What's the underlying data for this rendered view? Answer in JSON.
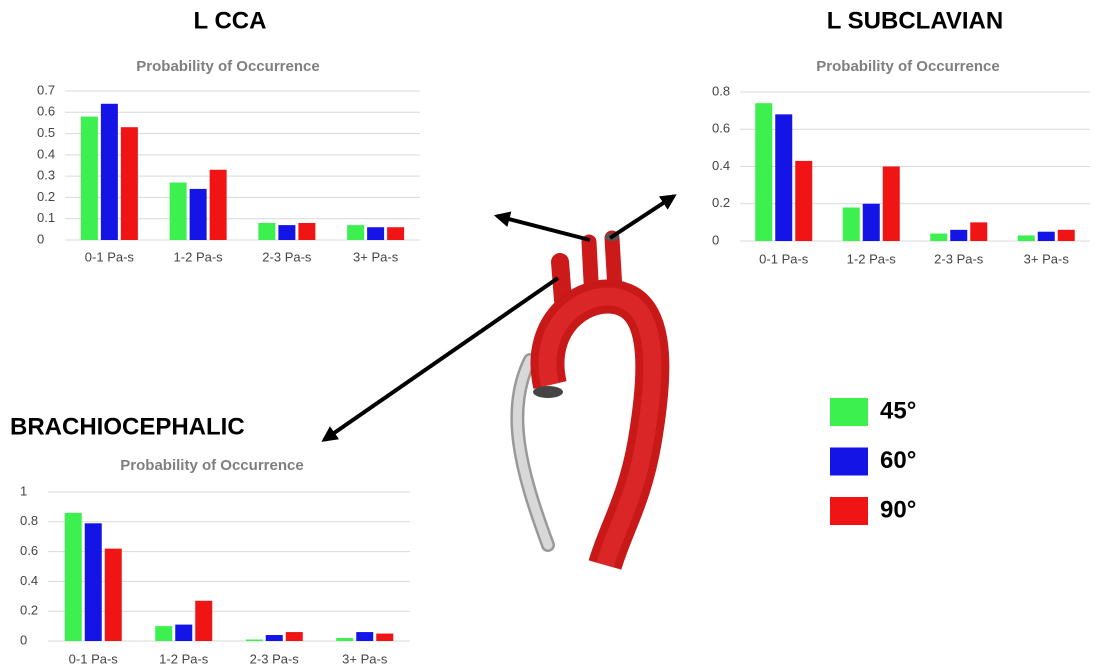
{
  "legend": [
    {
      "name": "45°",
      "color": "#3cf050"
    },
    {
      "name": "60°",
      "color": "#1414e6"
    },
    {
      "name": "90°",
      "color": "#f01414"
    }
  ],
  "chart_data": [
    {
      "type": "bar",
      "title": "L CCA",
      "subtitle": "Probability of Occurrence",
      "categories": [
        "0-1 Pa-s",
        "1-2 Pa-s",
        "2-3 Pa-s",
        "3+ Pa-s"
      ],
      "series": [
        {
          "values": [
            0.58,
            0.27,
            0.08,
            0.07
          ]
        },
        {
          "values": [
            0.64,
            0.24,
            0.07,
            0.06
          ]
        },
        {
          "values": [
            0.53,
            0.33,
            0.08,
            0.06
          ]
        }
      ],
      "ylim": [
        0,
        0.7
      ],
      "yticks": [
        0,
        0.1,
        0.2,
        0.3,
        0.4,
        0.5,
        0.6,
        0.7
      ],
      "grid": true
    },
    {
      "type": "bar",
      "title": "L SUBCLAVIAN",
      "subtitle": "Probability of Occurrence",
      "categories": [
        "0-1 Pa-s",
        "1-2 Pa-s",
        "2-3 Pa-s",
        "3+ Pa-s"
      ],
      "series": [
        {
          "values": [
            0.74,
            0.18,
            0.04,
            0.03
          ]
        },
        {
          "values": [
            0.68,
            0.2,
            0.06,
            0.05
          ]
        },
        {
          "values": [
            0.43,
            0.4,
            0.1,
            0.06
          ]
        }
      ],
      "ylim": [
        0,
        0.8
      ],
      "yticks": [
        0,
        0.2,
        0.4,
        0.6,
        0.8
      ],
      "grid": true
    },
    {
      "type": "bar",
      "title": "BRACHIOCEPHALIC",
      "subtitle": "Probability of Occurrence",
      "categories": [
        "0-1 Pa-s",
        "1-2 Pa-s",
        "2-3 Pa-s",
        "3+ Pa-s"
      ],
      "series": [
        {
          "values": [
            0.86,
            0.1,
            0.01,
            0.02
          ]
        },
        {
          "values": [
            0.79,
            0.11,
            0.04,
            0.06
          ]
        },
        {
          "values": [
            0.62,
            0.27,
            0.06,
            0.05
          ]
        }
      ],
      "ylim": [
        0,
        1
      ],
      "yticks": [
        0,
        0.2,
        0.4,
        0.6,
        0.8,
        1
      ],
      "grid": true
    }
  ]
}
